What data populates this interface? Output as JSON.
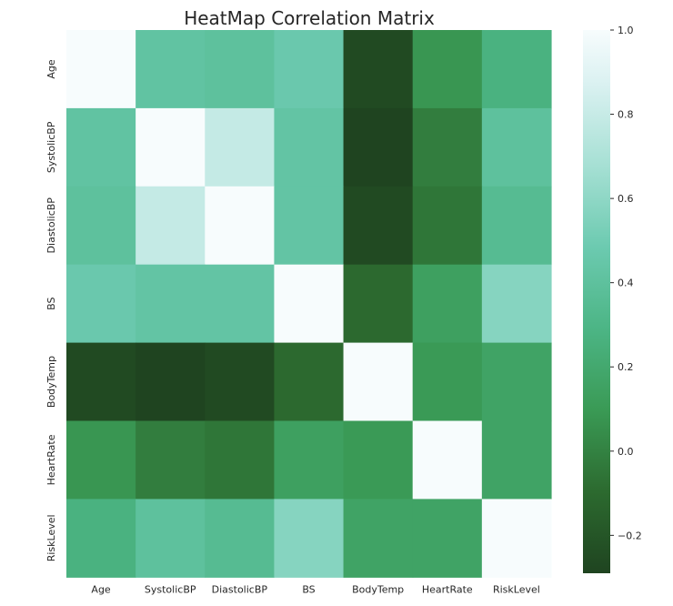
{
  "chart_data": {
    "type": "heatmap",
    "title": "HeatMap Correlation Matrix",
    "xlabel": "",
    "ylabel": "",
    "labels": [
      "Age",
      "SystolicBP",
      "DiastolicBP",
      "BS",
      "BodyTemp",
      "HeartRate",
      "RiskLevel"
    ],
    "matrix": [
      [
        1.0,
        0.42,
        0.4,
        0.47,
        -0.26,
        0.08,
        0.27
      ],
      [
        0.42,
        1.0,
        0.79,
        0.43,
        -0.29,
        -0.02,
        0.4
      ],
      [
        0.4,
        0.79,
        1.0,
        0.43,
        -0.26,
        -0.05,
        0.35
      ],
      [
        0.47,
        0.43,
        0.43,
        1.0,
        -0.1,
        0.14,
        0.57
      ],
      [
        -0.26,
        -0.29,
        -0.26,
        -0.1,
        1.0,
        0.1,
        0.16
      ],
      [
        0.08,
        -0.02,
        -0.05,
        0.14,
        0.1,
        1.0,
        0.16
      ],
      [
        0.27,
        0.4,
        0.35,
        0.57,
        0.16,
        0.16,
        1.0
      ]
    ],
    "colorbar": {
      "vmin": -0.29,
      "vmax": 1.0,
      "ticks": [
        1.0,
        0.8,
        0.6,
        0.4,
        0.2,
        0.0,
        -0.2
      ],
      "tick_labels": [
        "1.0",
        "0.8",
        "0.6",
        "0.4",
        "0.2",
        "0.0",
        "−0.2"
      ]
    },
    "colormap": {
      "stops": [
        {
          "v": 0.0,
          "c": "#1f4420"
        },
        {
          "v": 0.15,
          "c": "#2c6a2f"
        },
        {
          "v": 0.3,
          "c": "#3a9a55"
        },
        {
          "v": 0.45,
          "c": "#4cb585"
        },
        {
          "v": 0.6,
          "c": "#6ccab0"
        },
        {
          "v": 0.75,
          "c": "#a6e0d4"
        },
        {
          "v": 0.9,
          "c": "#daf1f1"
        },
        {
          "v": 1.0,
          "c": "#f7fcfd"
        }
      ]
    },
    "grid": false,
    "legend": "right colorbar"
  }
}
